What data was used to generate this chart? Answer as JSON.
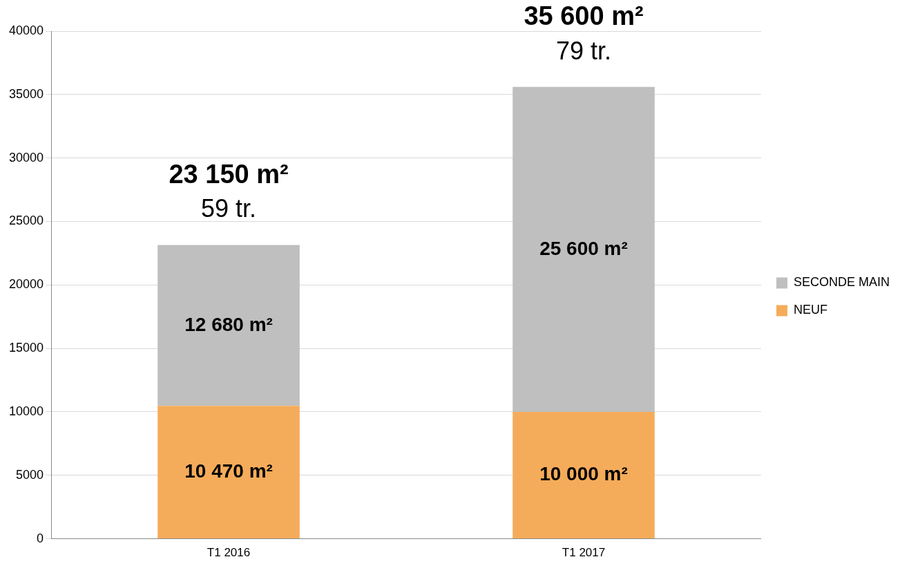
{
  "chart_data": {
    "type": "bar",
    "stacked": true,
    "categories": [
      "T1 2016",
      "T1 2017"
    ],
    "series": [
      {
        "name": "NEUF",
        "color": "#f5ac5a",
        "values": [
          10470,
          10000
        ],
        "value_labels": [
          "10 470 m²",
          "10 000 m²"
        ]
      },
      {
        "name": "SECONDE MAIN",
        "color": "#bfbfbf",
        "values": [
          12680,
          25600
        ],
        "value_labels": [
          "12 680 m²",
          "25 600 m²"
        ]
      }
    ],
    "totals": [
      "23 150 m²",
      "35 600 m²"
    ],
    "annotations": [
      {
        "text": "59 tr.",
        "x": "T1 2016",
        "y": 23150
      },
      {
        "text": "79 tr.",
        "x": "T1 2017",
        "y": 35600
      }
    ],
    "ylim": [
      0,
      40000
    ],
    "yticks": [
      0,
      5000,
      10000,
      15000,
      20000,
      25000,
      30000,
      35000,
      40000
    ],
    "grid": "y",
    "legend": "right"
  }
}
